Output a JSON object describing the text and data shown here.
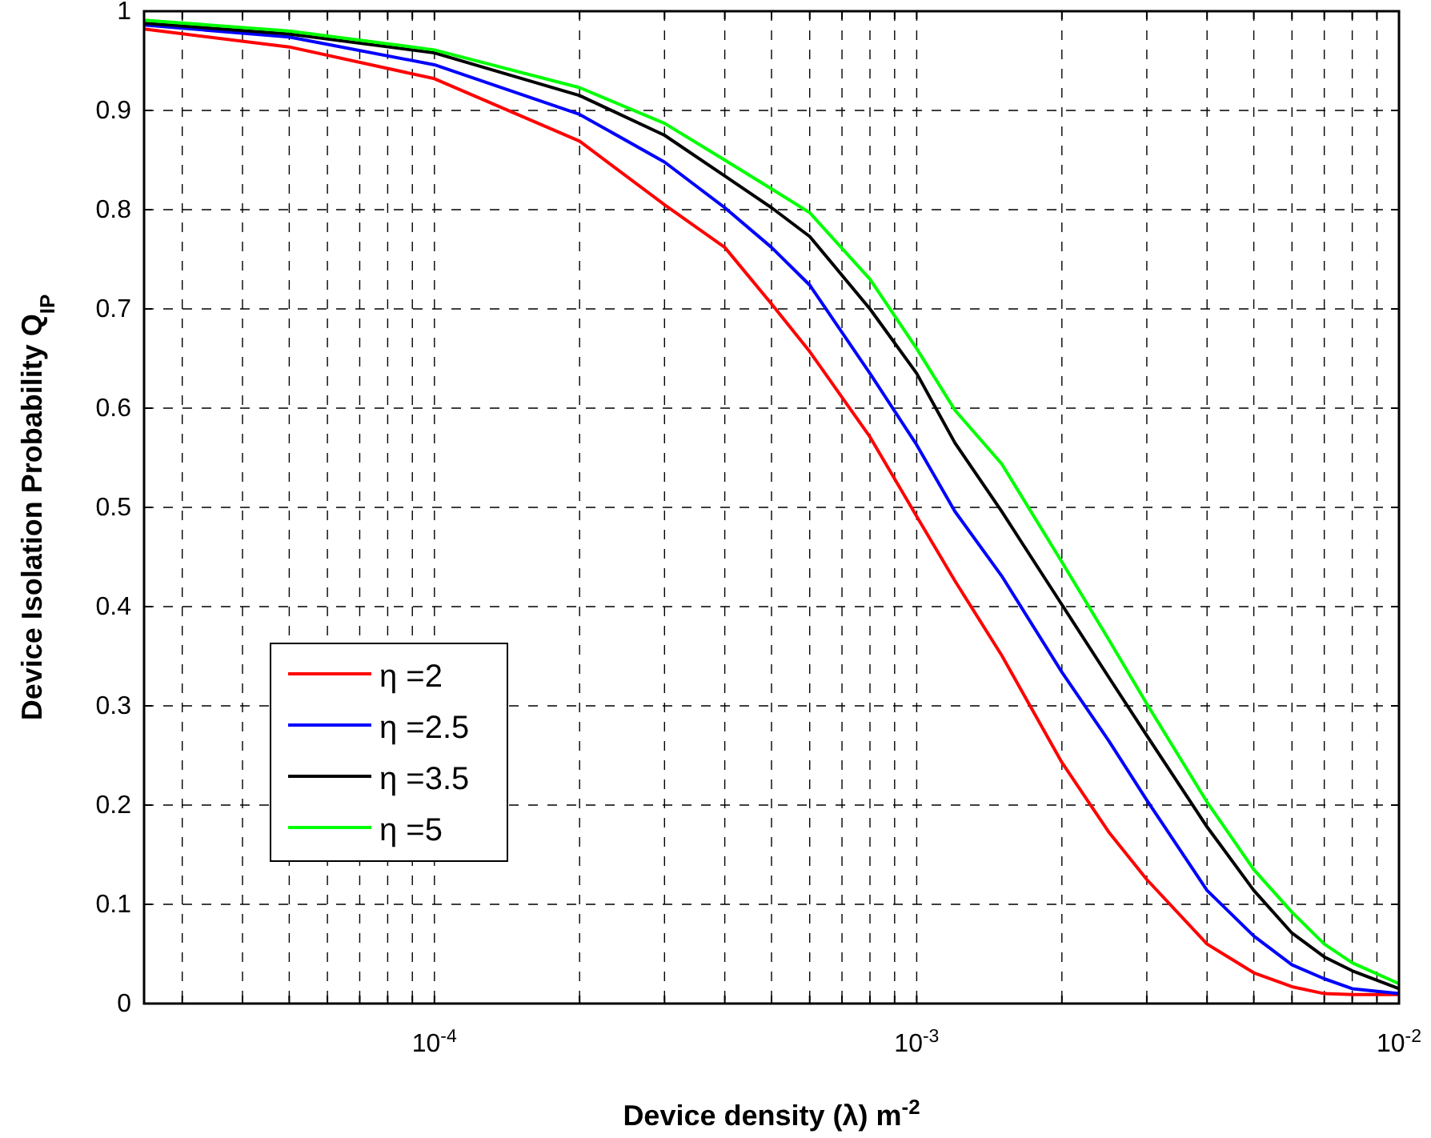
{
  "chart_data": {
    "type": "line",
    "xlabel": "Device density (λ) m$^{-2}$",
    "ylabel": "Device Isolation Probability  Q$_{IP}$",
    "log": "x",
    "x": [
      2.5e-05,
      5e-05,
      0.0001,
      0.0002,
      0.0003,
      0.0004,
      0.0005,
      0.0006,
      0.0008,
      0.001,
      0.0012,
      0.0015,
      0.002,
      0.0025,
      0.003,
      0.004,
      0.005,
      0.006,
      0.007,
      0.008,
      0.01
    ],
    "series": [
      {
        "name": "η =2",
        "color": "#ff0000",
        "values": [
          0.982,
          0.964,
          0.932,
          0.869,
          0.805,
          0.762,
          0.705,
          0.657,
          0.571,
          0.491,
          0.426,
          0.351,
          0.243,
          0.173,
          0.125,
          0.06,
          0.031,
          0.017,
          0.01,
          0.009,
          0.009
        ]
      },
      {
        "name": "η =2.5",
        "color": "#0000ff",
        "values": [
          0.986,
          0.974,
          0.946,
          0.896,
          0.848,
          0.802,
          0.762,
          0.724,
          0.635,
          0.563,
          0.496,
          0.431,
          0.334,
          0.265,
          0.205,
          0.114,
          0.068,
          0.039,
          0.025,
          0.015,
          0.01
        ]
      },
      {
        "name": "η =3.5",
        "color": "#000000",
        "values": [
          0.988,
          0.977,
          0.958,
          0.915,
          0.875,
          0.834,
          0.802,
          0.773,
          0.7,
          0.635,
          0.565,
          0.496,
          0.402,
          0.329,
          0.27,
          0.178,
          0.114,
          0.071,
          0.047,
          0.033,
          0.015
        ]
      },
      {
        "name": "η =5",
        "color": "#00ff00",
        "values": [
          0.991,
          0.98,
          0.961,
          0.923,
          0.887,
          0.85,
          0.821,
          0.797,
          0.73,
          0.66,
          0.598,
          0.544,
          0.445,
          0.367,
          0.302,
          0.203,
          0.135,
          0.092,
          0.06,
          0.041,
          0.02
        ]
      }
    ],
    "xlim": [
      2.5e-05,
      0.01
    ],
    "xticks": [
      {
        "value": 3e-05,
        "label": null
      },
      {
        "value": 4e-05,
        "label": null
      },
      {
        "value": 5e-05,
        "label": null
      },
      {
        "value": 6e-05,
        "label": null
      },
      {
        "value": 7e-05,
        "label": null
      },
      {
        "value": 8e-05,
        "label": null
      },
      {
        "value": 9e-05,
        "label": null
      },
      {
        "value": 0.0001,
        "label": "10$^{-4}$"
      },
      {
        "value": 0.0002,
        "label": null
      },
      {
        "value": 0.0003,
        "label": null
      },
      {
        "value": 0.0004,
        "label": null
      },
      {
        "value": 0.0005,
        "label": null
      },
      {
        "value": 0.0006,
        "label": null
      },
      {
        "value": 0.0007,
        "label": null
      },
      {
        "value": 0.0008,
        "label": null
      },
      {
        "value": 0.0009,
        "label": null
      },
      {
        "value": 0.001,
        "label": "10$^{-3}$"
      },
      {
        "value": 0.002,
        "label": null
      },
      {
        "value": 0.003,
        "label": null
      },
      {
        "value": 0.004,
        "label": null
      },
      {
        "value": 0.005,
        "label": null
      },
      {
        "value": 0.006,
        "label": null
      },
      {
        "value": 0.007,
        "label": null
      },
      {
        "value": 0.008,
        "label": null
      },
      {
        "value": 0.009,
        "label": null
      },
      {
        "value": 0.01,
        "label": "10$^{-2}$"
      }
    ],
    "ylim": [
      0,
      1
    ],
    "yticks": [
      0,
      0.1,
      0.2,
      0.3,
      0.4,
      0.5,
      0.6,
      0.7,
      0.8,
      0.9,
      1
    ],
    "grid": true,
    "legend": "left",
    "line_style": "solid",
    "marker": "none"
  }
}
